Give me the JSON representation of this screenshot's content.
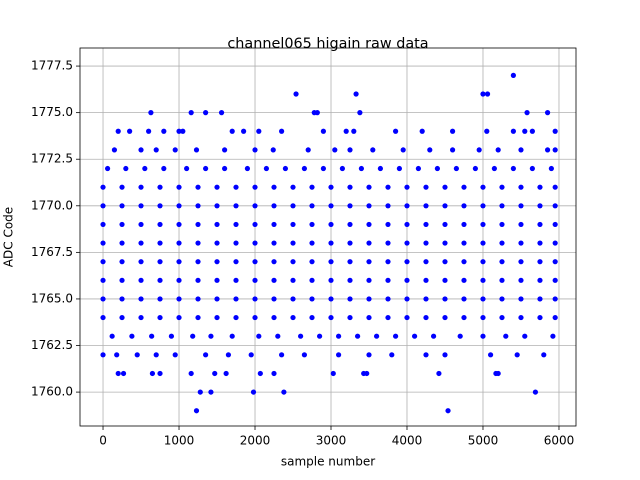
{
  "chart_data": {
    "type": "scatter",
    "title": "channel065 higain raw data",
    "xlabel": "sample number",
    "ylabel": "ADC Code",
    "color": "#0000ff",
    "grid": true,
    "xlim": [
      -303,
      6224
    ],
    "xticks": [
      0,
      1000,
      2000,
      3000,
      4000,
      5000,
      6000
    ],
    "ylim": [
      1758.18,
      1778.47
    ],
    "yticks": [
      {
        "value": 1760,
        "label": "1760.0"
      },
      {
        "value": 1762.5,
        "label": "1762.5"
      },
      {
        "value": 1765,
        "label": "1765.0"
      },
      {
        "value": 1767.5,
        "label": "1767.5"
      },
      {
        "value": 1770,
        "label": "1770.0"
      },
      {
        "value": 1772.5,
        "label": "1772.5"
      },
      {
        "value": 1775,
        "label": "1775.0"
      },
      {
        "value": 1777.5,
        "label": "1777.5"
      }
    ],
    "x": [
      0,
      250,
      500,
      750,
      1000,
      1250,
      1500,
      1750,
      2000,
      2250,
      2500,
      2750,
      3000,
      3250,
      3500,
      3750,
      4000,
      4250,
      4500,
      4750,
      5000,
      5250,
      5500,
      5750,
      5950,
      0,
      250,
      500,
      750,
      1000,
      1250,
      1500,
      1750,
      2000,
      2250,
      2500,
      2750,
      3000,
      3250,
      3500,
      3750,
      4000,
      4250,
      4500,
      4750,
      5000,
      5250,
      5500,
      5750,
      5950,
      0,
      250,
      500,
      750,
      1000,
      1250,
      1500,
      1750,
      2000,
      2250,
      2500,
      2750,
      3000,
      3250,
      3500,
      3750,
      4000,
      4250,
      4500,
      4750,
      5000,
      5250,
      5500,
      5750,
      5950,
      0,
      250,
      500,
      750,
      1000,
      1250,
      1500,
      1750,
      2000,
      2250,
      2500,
      2750,
      3000,
      3250,
      3500,
      3750,
      4000,
      4250,
      4500,
      4750,
      5000,
      5250,
      5500,
      5750,
      5950,
      0,
      250,
      500,
      750,
      1000,
      1250,
      1500,
      1750,
      2000,
      2250,
      2500,
      2750,
      3000,
      3250,
      3500,
      3750,
      4000,
      4250,
      4500,
      4750,
      5000,
      5250,
      5500,
      5750,
      5950,
      0,
      250,
      500,
      750,
      1000,
      1250,
      1500,
      1750,
      2000,
      2250,
      2500,
      2750,
      3000,
      3250,
      3500,
      3750,
      4000,
      4250,
      4500,
      4750,
      5000,
      5250,
      5500,
      5750,
      5950,
      0,
      250,
      500,
      750,
      1000,
      1250,
      1500,
      1750,
      2000,
      2250,
      2500,
      2750,
      3000,
      3250,
      3500,
      3750,
      4000,
      4250,
      4500,
      4750,
      5000,
      5250,
      5500,
      5750,
      5950,
      0,
      250,
      500,
      750,
      1000,
      1250,
      1500,
      1750,
      2000,
      2250,
      2500,
      2750,
      3000,
      3250,
      3500,
      3750,
      4000,
      4250,
      4500,
      4750,
      5000,
      5250,
      5500,
      5750,
      5950,
      60,
      300,
      550,
      800,
      1100,
      1350,
      1600,
      1900,
      2150,
      2400,
      2650,
      2900,
      3150,
      3400,
      3650,
      3900,
      4150,
      4400,
      4650,
      4900,
      5150,
      5400,
      5650,
      5900,
      120,
      380,
      640,
      900,
      1180,
      1420,
      1700,
      2050,
      2300,
      2600,
      2850,
      3100,
      3350,
      3600,
      3850,
      4100,
      4350,
      4700,
      5000,
      5300,
      5550,
      5920,
      150,
      500,
      700,
      950,
      1230,
      1600,
      2000,
      2240,
      2700,
      3050,
      3250,
      3550,
      3950,
      4300,
      4600,
      4950,
      5200,
      5500,
      5850,
      5950,
      0,
      180,
      450,
      700,
      950,
      1350,
      1650,
      1950,
      2350,
      2650,
      3100,
      3500,
      3800,
      4250,
      4500,
      5100,
      5450,
      5800,
      200,
      350,
      600,
      800,
      1000,
      1050,
      1700,
      1850,
      2050,
      2350,
      2900,
      3200,
      3300,
      3850,
      4200,
      4600,
      5050,
      5400,
      5550,
      5650,
      5950,
      200,
      270,
      650,
      750,
      1160,
      1470,
      1620,
      2070,
      2250,
      3030,
      3430,
      3470,
      4420,
      5170,
      5200,
      630,
      1160,
      1350,
      1560,
      2780,
      2820,
      3380,
      5580,
      5850,
      2540,
      3330,
      5000,
      5060,
      5400,
      1280,
      1420,
      1980,
      2380,
      5690,
      1230,
      4540
    ],
    "values": [
      1764,
      1764,
      1764,
      1764,
      1764,
      1764,
      1764,
      1764,
      1764,
      1764,
      1764,
      1764,
      1764,
      1764,
      1764,
      1764,
      1764,
      1764,
      1764,
      1764,
      1764,
      1764,
      1764,
      1764,
      1764,
      1765,
      1765,
      1765,
      1765,
      1765,
      1765,
      1765,
      1765,
      1765,
      1765,
      1765,
      1765,
      1765,
      1765,
      1765,
      1765,
      1765,
      1765,
      1765,
      1765,
      1765,
      1765,
      1765,
      1765,
      1765,
      1766,
      1766,
      1766,
      1766,
      1766,
      1766,
      1766,
      1766,
      1766,
      1766,
      1766,
      1766,
      1766,
      1766,
      1766,
      1766,
      1766,
      1766,
      1766,
      1766,
      1766,
      1766,
      1766,
      1766,
      1766,
      1767,
      1767,
      1767,
      1767,
      1767,
      1767,
      1767,
      1767,
      1767,
      1767,
      1767,
      1767,
      1767,
      1767,
      1767,
      1767,
      1767,
      1767,
      1767,
      1767,
      1767,
      1767,
      1767,
      1767,
      1767,
      1768,
      1768,
      1768,
      1768,
      1768,
      1768,
      1768,
      1768,
      1768,
      1768,
      1768,
      1768,
      1768,
      1768,
      1768,
      1768,
      1768,
      1768,
      1768,
      1768,
      1768,
      1768,
      1768,
      1768,
      1768,
      1769,
      1769,
      1769,
      1769,
      1769,
      1769,
      1769,
      1769,
      1769,
      1769,
      1769,
      1769,
      1769,
      1769,
      1769,
      1769,
      1769,
      1769,
      1769,
      1769,
      1769,
      1769,
      1769,
      1769,
      1769,
      1770,
      1770,
      1770,
      1770,
      1770,
      1770,
      1770,
      1770,
      1770,
      1770,
      1770,
      1770,
      1770,
      1770,
      1770,
      1770,
      1770,
      1770,
      1770,
      1770,
      1770,
      1770,
      1770,
      1770,
      1770,
      1771,
      1771,
      1771,
      1771,
      1771,
      1771,
      1771,
      1771,
      1771,
      1771,
      1771,
      1771,
      1771,
      1771,
      1771,
      1771,
      1771,
      1771,
      1771,
      1771,
      1771,
      1771,
      1771,
      1771,
      1771,
      1772,
      1772,
      1772,
      1772,
      1772,
      1772,
      1772,
      1772,
      1772,
      1772,
      1772,
      1772,
      1772,
      1772,
      1772,
      1772,
      1772,
      1772,
      1772,
      1772,
      1772,
      1772,
      1772,
      1772,
      1763,
      1763,
      1763,
      1763,
      1763,
      1763,
      1763,
      1763,
      1763,
      1763,
      1763,
      1763,
      1763,
      1763,
      1763,
      1763,
      1763,
      1763,
      1763,
      1763,
      1763,
      1763,
      1773,
      1773,
      1773,
      1773,
      1773,
      1773,
      1773,
      1773,
      1773,
      1773,
      1773,
      1773,
      1773,
      1773,
      1773,
      1773,
      1773,
      1773,
      1773,
      1773,
      1762,
      1762,
      1762,
      1762,
      1762,
      1762,
      1762,
      1762,
      1762,
      1762,
      1762,
      1762,
      1762,
      1762,
      1762,
      1762,
      1762,
      1762,
      1774,
      1774,
      1774,
      1774,
      1774,
      1774,
      1774,
      1774,
      1774,
      1774,
      1774,
      1774,
      1774,
      1774,
      1774,
      1774,
      1774,
      1774,
      1774,
      1774,
      1774,
      1761,
      1761,
      1761,
      1761,
      1761,
      1761,
      1761,
      1761,
      1761,
      1761,
      1761,
      1761,
      1761,
      1761,
      1761,
      1775,
      1775,
      1775,
      1775,
      1775,
      1775,
      1775,
      1775,
      1775,
      1776,
      1776,
      1776,
      1776,
      1777,
      1760,
      1760,
      1760,
      1760,
      1760,
      1759,
      1759
    ]
  }
}
